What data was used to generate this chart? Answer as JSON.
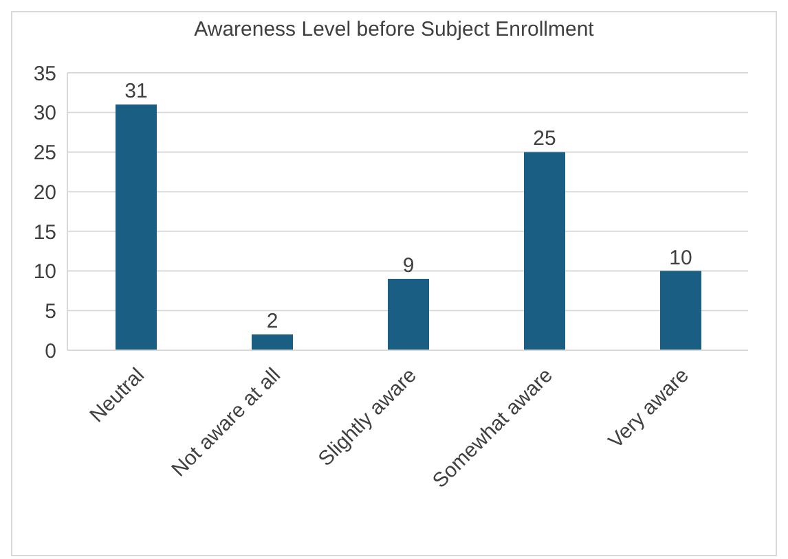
{
  "chart_data": {
    "type": "bar",
    "title": "Awareness Level before Subject Enrollment",
    "categories": [
      "Neutral",
      "Not aware at all",
      "Slightly aware",
      "Somewhat aware",
      "Very aware"
    ],
    "values": [
      31,
      2,
      9,
      25,
      10
    ],
    "color": "#1a5e83",
    "ylim": [
      0,
      35
    ],
    "yticks": [
      0,
      5,
      10,
      15,
      20,
      25,
      30,
      35
    ],
    "grid": "y",
    "data_labels": true,
    "legend": false
  }
}
